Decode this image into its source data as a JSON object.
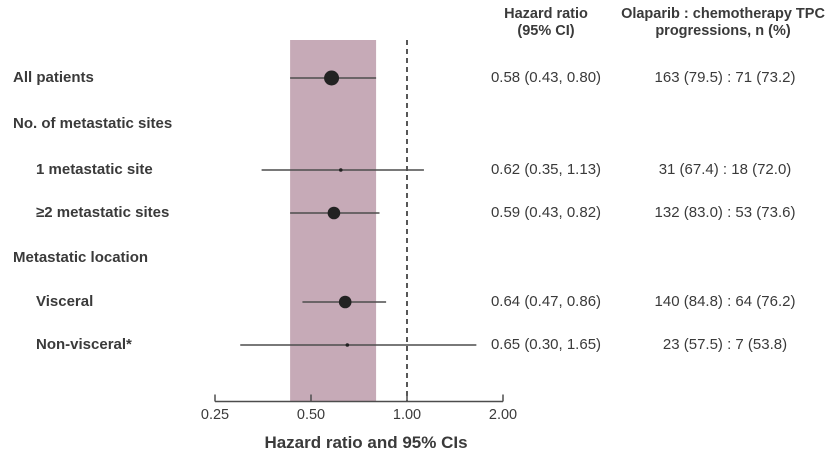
{
  "figure": {
    "columns": {
      "hazard_ratio_header": "Hazard ratio\n(95% CI)",
      "progressions_header": "Olaparib : chemotherapy TPC\nprogressions, n (%)"
    },
    "rows": [
      {
        "label": "All patients",
        "level": 0,
        "hr_text": "0.58 (0.43, 0.80)",
        "ratio_text": "163 (79.5) : 71 (73.2)"
      },
      {
        "label": "No. of metastatic sites",
        "level": 0,
        "hr_text": "",
        "ratio_text": ""
      },
      {
        "label": "1 metastatic site",
        "level": 1,
        "hr_text": "0.62 (0.35, 1.13)",
        "ratio_text": "31 (67.4) : 18 (72.0)"
      },
      {
        "label": "≥2 metastatic sites",
        "level": 1,
        "hr_text": "0.59 (0.43, 0.82)",
        "ratio_text": "132 (83.0) : 53 (73.6)"
      },
      {
        "label": "Metastatic location",
        "level": 0,
        "hr_text": "",
        "ratio_text": ""
      },
      {
        "label": "Visceral",
        "level": 1,
        "hr_text": "0.64 (0.47, 0.86)",
        "ratio_text": "140 (84.8) : 64 (76.2)"
      },
      {
        "label": "Non-visceral*",
        "level": 1,
        "hr_text": "0.65 (0.30, 1.65)",
        "ratio_text": "23 (57.5) : 7 (53.8)"
      }
    ]
  },
  "chart_data": {
    "type": "forest",
    "title": "",
    "xlabel": "Hazard ratio and 95% CIs",
    "x_scale": "log",
    "xlim": [
      0.25,
      2.0
    ],
    "x_ticks": [
      0.25,
      0.5,
      1.0,
      2.0
    ],
    "x_tick_labels": [
      "0.25",
      "0.50",
      "1.00",
      "2.00"
    ],
    "reference_line": 1.0,
    "shaded_band": {
      "from": 0.43,
      "to": 0.8
    },
    "series": [
      {
        "name": "All patients",
        "hr": 0.58,
        "ci_low": 0.43,
        "ci_high": 0.8,
        "marker_size": "large"
      },
      {
        "name": "1 metastatic site",
        "hr": 0.62,
        "ci_low": 0.35,
        "ci_high": 1.13,
        "marker_size": "small"
      },
      {
        "name": "≥2 metastatic sites",
        "hr": 0.59,
        "ci_low": 0.43,
        "ci_high": 0.82,
        "marker_size": "medium"
      },
      {
        "name": "Visceral",
        "hr": 0.64,
        "ci_low": 0.47,
        "ci_high": 0.86,
        "marker_size": "medium"
      },
      {
        "name": "Non-visceral*",
        "hr": 0.65,
        "ci_low": 0.3,
        "ci_high": 1.65,
        "marker_size": "small"
      }
    ],
    "colors": {
      "band": "#c6aab7",
      "marker": "#222222",
      "ci_line": "#4d4d4d",
      "axis": "#4d4d4d",
      "reference_line": "#2e2e2e",
      "text": "#3a3a3a"
    }
  }
}
